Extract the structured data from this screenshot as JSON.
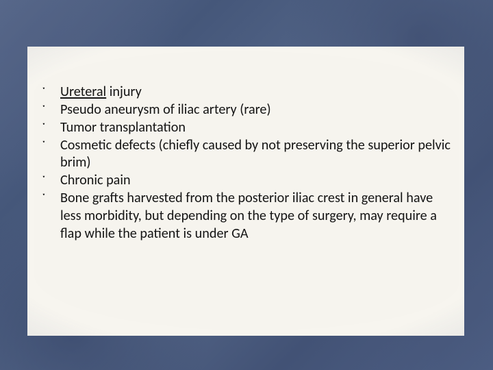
{
  "slide": {
    "background_border_color": "#4a5a7a",
    "paper_color": "#f6f4ee",
    "text_color": "#141414",
    "font_family": "Calibri",
    "font_size_pt": 18,
    "line_height": 1.28,
    "bullet_glyph": "༌",
    "items": [
      {
        "underlined_lead": "Ureteral",
        "rest": " injury"
      },
      {
        "text": "Pseudo aneurysm of iliac artery (rare)"
      },
      {
        "text": "Tumor transplantation"
      },
      {
        "text": "Cosmetic defects (chiefly caused by not preserving the superior pelvic brim)"
      },
      {
        "text": "Chronic pain"
      },
      {
        "text": "Bone grafts harvested from the posterior iliac crest in general have less morbidity, but depending on the type of surgery, may require a flap while the patient is under GA"
      }
    ]
  }
}
